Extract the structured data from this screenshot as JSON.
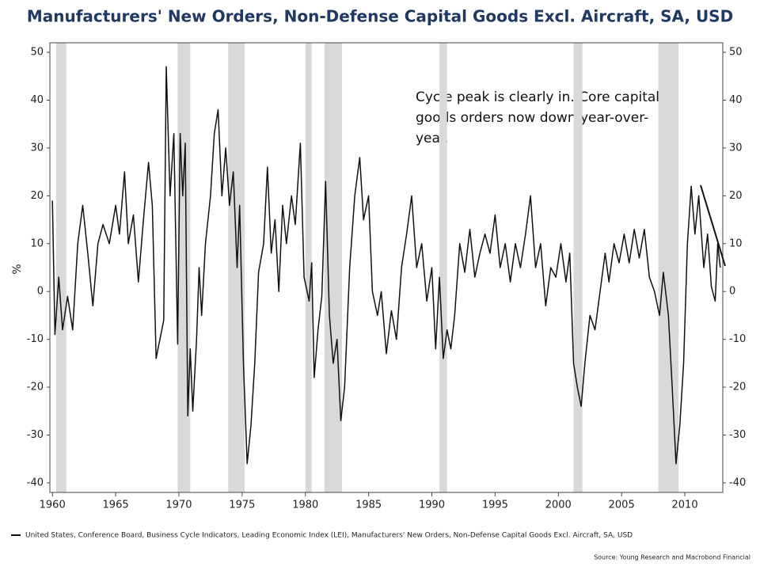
{
  "chart_data": {
    "type": "line",
    "title": "Manufacturers' New Orders, Non-Defense Capital Goods Excl. Aircraft, SA, USD",
    "y_label": "%",
    "annotation": "Cycle peak is clearly in. Core capital goods orders now down year-over-year.",
    "source": "Source: Young Research and Macrobond Financial",
    "xlim": [
      1959.8,
      2013.0
    ],
    "xticks": [
      1960,
      1965,
      1970,
      1975,
      1980,
      1985,
      1990,
      1995,
      2000,
      2005,
      2010
    ],
    "ylim": [
      -42,
      52
    ],
    "yticks": [
      -40,
      -30,
      -20,
      -10,
      0,
      10,
      20,
      30,
      40,
      50
    ],
    "y2lim": [
      -42,
      52
    ],
    "y2ticks": [
      -40,
      -30,
      -20,
      -10,
      0,
      10,
      20,
      30,
      40,
      50
    ],
    "recessions": [
      [
        1960.3,
        1961.1
      ],
      [
        1969.9,
        1970.9
      ],
      [
        1973.9,
        1975.2
      ],
      [
        1980.0,
        1980.5
      ],
      [
        1981.5,
        1982.9
      ],
      [
        1990.6,
        1991.2
      ],
      [
        2001.2,
        2001.9
      ],
      [
        2007.9,
        2009.5
      ]
    ],
    "recession_color": "#d9d9d9",
    "series": [
      {
        "name": "United States, Conference Board, Business Cycle Indicators, Leading Economic Index (LEI), Manufacturers' New Orders, Non-Defense Capital Goods Excl. Aircraft, SA, USD",
        "color": "#111111",
        "x": [
          1960.0,
          1960.2,
          1960.5,
          1960.8,
          1961.2,
          1961.6,
          1962.0,
          1962.4,
          1962.8,
          1963.2,
          1963.6,
          1964.0,
          1964.5,
          1965.0,
          1965.3,
          1965.7,
          1966.0,
          1966.4,
          1966.8,
          1967.2,
          1967.6,
          1967.9,
          1968.2,
          1968.5,
          1968.8,
          1969.0,
          1969.3,
          1969.6,
          1969.9,
          1970.1,
          1970.3,
          1970.5,
          1970.7,
          1970.9,
          1971.1,
          1971.4,
          1971.6,
          1971.8,
          1972.1,
          1972.5,
          1972.8,
          1973.1,
          1973.4,
          1973.7,
          1974.0,
          1974.3,
          1974.6,
          1974.8,
          1975.1,
          1975.4,
          1975.7,
          1976.0,
          1976.3,
          1976.7,
          1977.0,
          1977.3,
          1977.6,
          1977.9,
          1978.2,
          1978.5,
          1978.9,
          1979.2,
          1979.6,
          1979.9,
          1980.3,
          1980.5,
          1980.7,
          1981.0,
          1981.3,
          1981.6,
          1981.9,
          1982.2,
          1982.5,
          1982.8,
          1983.1,
          1983.5,
          1983.9,
          1984.3,
          1984.6,
          1985.0,
          1985.3,
          1985.7,
          1986.0,
          1986.4,
          1986.8,
          1987.2,
          1987.6,
          1988.0,
          1988.4,
          1988.8,
          1989.2,
          1989.6,
          1990.0,
          1990.3,
          1990.6,
          1990.9,
          1991.2,
          1991.5,
          1991.8,
          1992.2,
          1992.6,
          1993.0,
          1993.4,
          1993.8,
          1994.2,
          1994.6,
          1995.0,
          1995.4,
          1995.8,
          1996.2,
          1996.6,
          1997.0,
          1997.4,
          1997.8,
          1998.2,
          1998.6,
          1999.0,
          1999.4,
          1999.8,
          2000.2,
          2000.6,
          2000.9,
          2001.2,
          2001.5,
          2001.8,
          2002.1,
          2002.5,
          2002.9,
          2003.3,
          2003.7,
          2004.0,
          2004.4,
          2004.8,
          2005.2,
          2005.6,
          2006.0,
          2006.4,
          2006.8,
          2007.2,
          2007.6,
          2008.0,
          2008.3,
          2008.7,
          2009.0,
          2009.3,
          2009.6,
          2009.9,
          2010.2,
          2010.5,
          2010.8,
          2011.1,
          2011.5,
          2011.8,
          2012.1,
          2012.4,
          2012.6,
          2012.8
        ],
        "values": [
          19,
          -9,
          3,
          -8,
          -1,
          -8,
          10,
          18,
          8,
          -3,
          10,
          14,
          10,
          18,
          12,
          25,
          10,
          16,
          2,
          15,
          27,
          18,
          -14,
          -10,
          -6,
          47,
          20,
          33,
          -11,
          33,
          20,
          31,
          -26,
          -12,
          -25,
          -10,
          5,
          -5,
          10,
          20,
          33,
          38,
          20,
          30,
          18,
          25,
          5,
          18,
          -15,
          -36,
          -28,
          -15,
          4,
          10,
          26,
          8,
          15,
          0,
          18,
          10,
          20,
          14,
          31,
          3,
          -2,
          6,
          -18,
          -8,
          -1,
          23,
          -5,
          -15,
          -10,
          -27,
          -20,
          5,
          20,
          28,
          15,
          20,
          0,
          -5,
          0,
          -13,
          -4,
          -10,
          5,
          12,
          20,
          5,
          10,
          -2,
          5,
          -12,
          3,
          -14,
          -8,
          -12,
          -5,
          10,
          4,
          13,
          3,
          8,
          12,
          8,
          16,
          5,
          10,
          2,
          10,
          5,
          12,
          20,
          5,
          10,
          -3,
          5,
          3,
          10,
          2,
          8,
          -15,
          -20,
          -24,
          -15,
          -5,
          -8,
          0,
          8,
          2,
          10,
          6,
          12,
          6,
          13,
          7,
          13,
          3,
          0,
          -5,
          4,
          -5,
          -20,
          -36,
          -28,
          -15,
          10,
          22,
          12,
          20,
          5,
          12,
          1,
          -2,
          10,
          5
        ]
      }
    ]
  }
}
